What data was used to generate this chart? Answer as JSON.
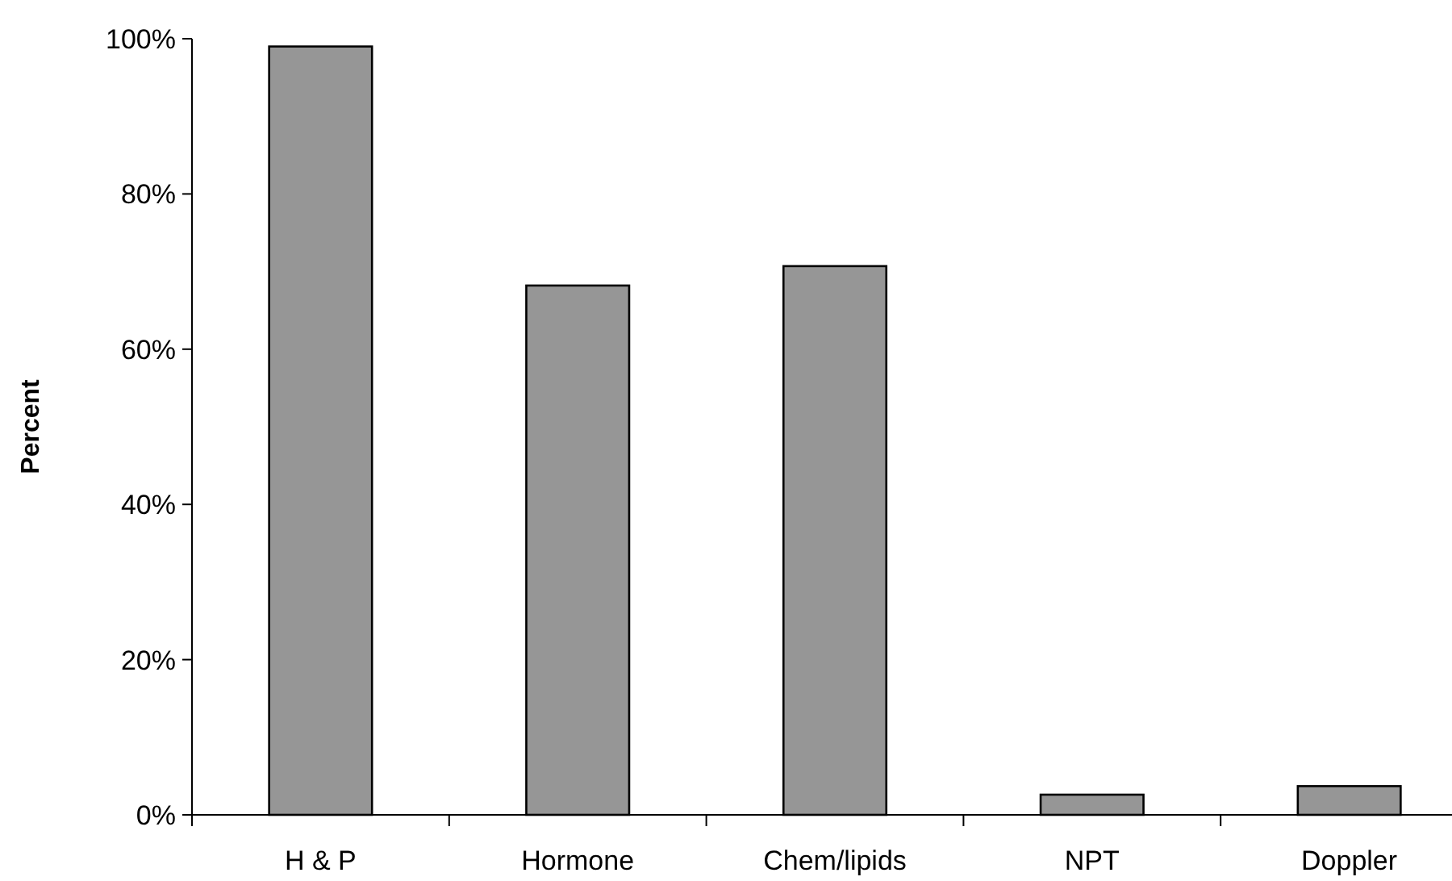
{
  "chart_data": {
    "type": "bar",
    "ylabel": "Percent",
    "categories": [
      "H & P",
      "Hormone",
      "Chem/lipids",
      "NPT",
      "Doppler"
    ],
    "values": [
      99,
      68.2,
      70.7,
      2.6,
      3.7
    ],
    "color": "#969696",
    "ylim": [
      0,
      100
    ],
    "yticks": [
      {
        "value": 0,
        "label": "0%"
      },
      {
        "value": 20,
        "label": "20%"
      },
      {
        "value": 40,
        "label": "40%"
      },
      {
        "value": 60,
        "label": "60%"
      },
      {
        "value": 80,
        "label": "80%"
      },
      {
        "value": 100,
        "label": "100%"
      }
    ],
    "grid": false
  }
}
